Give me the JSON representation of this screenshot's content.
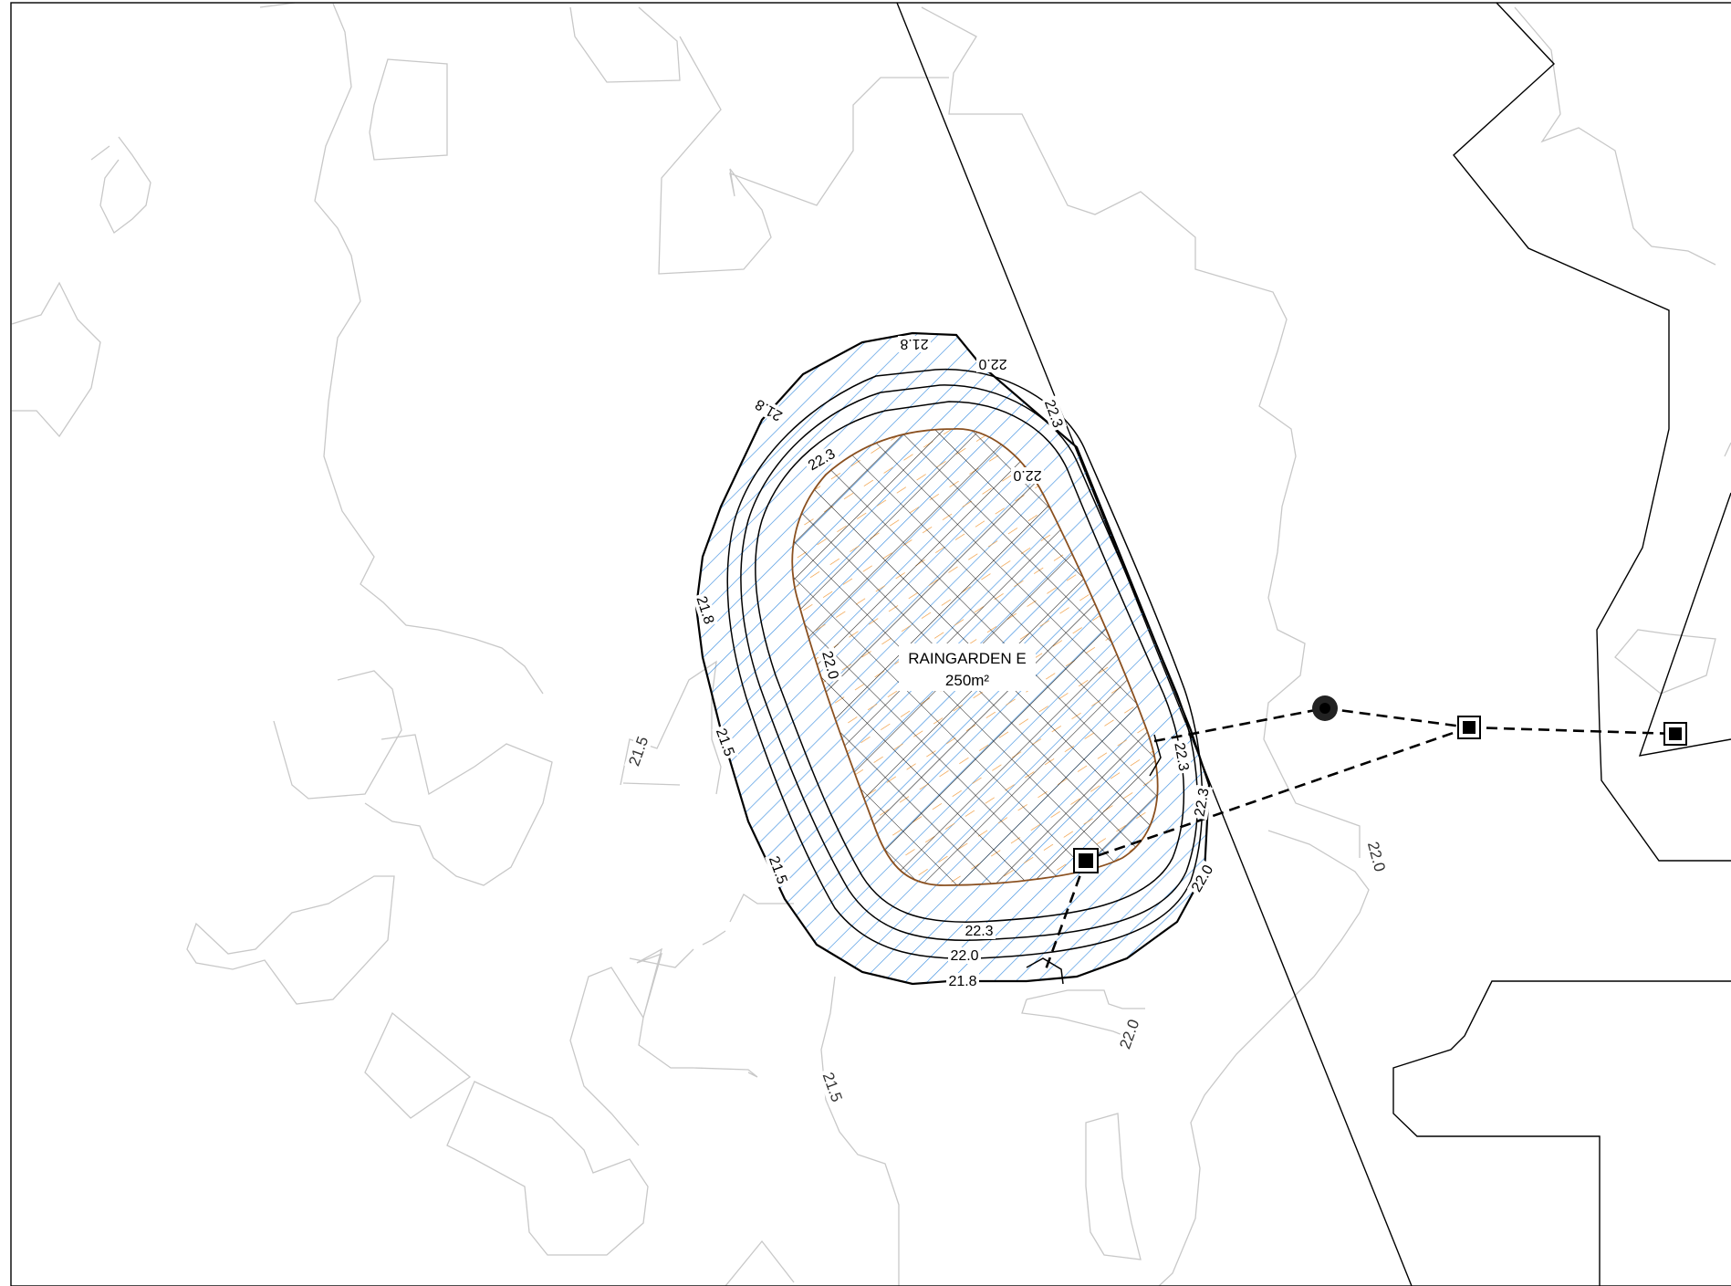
{
  "feature": {
    "name": "RAINGARDEN E",
    "area": "250m²"
  },
  "contour_labels": {
    "c21_8_top": "21.8",
    "c22_0_top": "22.0",
    "c21_8_left_top": "21.8",
    "c22_3_right_top": "22.3",
    "c22_3_left_inner": "22.3",
    "c22_0_inner_top": "22.0",
    "c21_8_left": "21.8",
    "c22_0_inner_left": "22.0",
    "c21_5_left": "21.5",
    "c21_5_bottom_left": "21.5",
    "c22_3_right": "22.3",
    "c22_3_right_lower": "22.3",
    "c22_0_right": "22.0",
    "c22_3_bottom": "22.3",
    "c22_0_bottom": "22.0",
    "c21_8_bottom": "21.8"
  },
  "terrain_labels": {
    "t21_5_west": "21.5",
    "t21_5_south": "21.5",
    "t22_0_south": "22.0",
    "t22_0_east": "22.0"
  },
  "colors": {
    "slope_hatch": "#3d8fe0",
    "basin_hatch": "#ef9634",
    "crosshatch": "#1a1a1a",
    "terrain": "#c8c8c8",
    "linework": "#000000"
  },
  "icons": {
    "manhole": "filled-circle-manhole-icon",
    "pit": "square-pit-icon"
  }
}
